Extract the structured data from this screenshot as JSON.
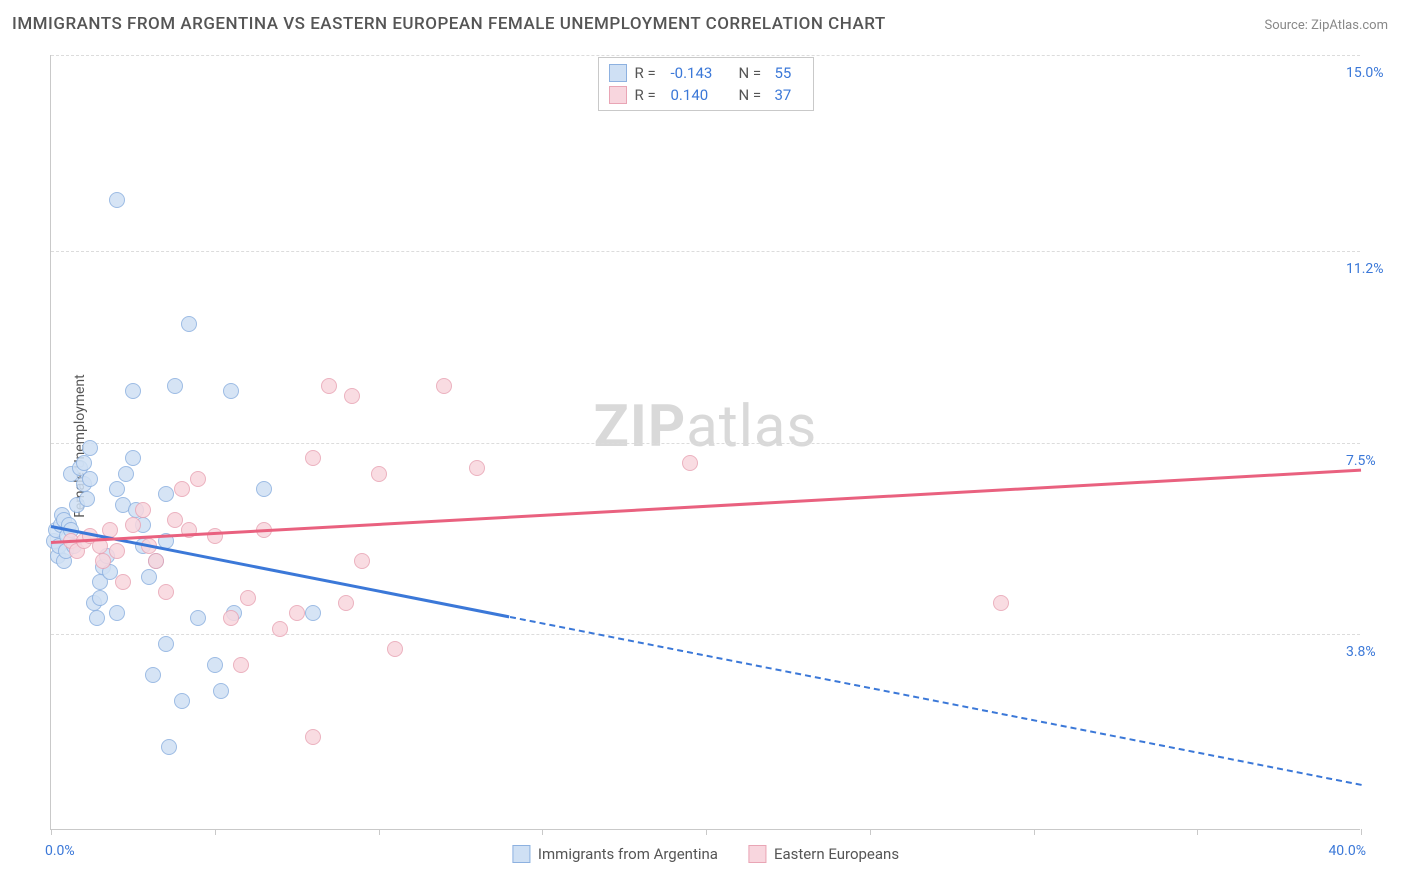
{
  "title": "IMMIGRANTS FROM ARGENTINA VS EASTERN EUROPEAN FEMALE UNEMPLOYMENT CORRELATION CHART",
  "source": "Source: ZipAtlas.com",
  "ylabel": "Female Unemployment",
  "watermark_prefix": "ZIP",
  "watermark_suffix": "atlas",
  "chart": {
    "type": "scatter",
    "xlim": [
      0,
      40
    ],
    "ylim": [
      0,
      15
    ],
    "x_min_label": "0.0%",
    "x_max_label": "40.0%",
    "y_ticks": [
      {
        "v": 3.8,
        "label": "3.8%"
      },
      {
        "v": 7.5,
        "label": "7.5%"
      },
      {
        "v": 11.2,
        "label": "11.2%"
      },
      {
        "v": 15.0,
        "label": "15.0%"
      }
    ],
    "x_tick_step": 5,
    "background_color": "#ffffff",
    "grid_color": "#dcdcdc",
    "point_radius": 8,
    "series": [
      {
        "key": "argentina",
        "label": "Immigrants from Argentina",
        "fill": "#cfe0f4",
        "stroke": "#8db1e0",
        "line_color": "#3b78d8",
        "r": "-0.143",
        "n": "55",
        "regression": {
          "x1": 0,
          "y1": 5.9,
          "x2": 40,
          "y2": 0.9,
          "solid_until_x": 14
        },
        "points": [
          [
            0.1,
            5.6
          ],
          [
            0.15,
            5.8
          ],
          [
            0.2,
            5.3
          ],
          [
            0.25,
            5.5
          ],
          [
            0.3,
            5.9
          ],
          [
            0.35,
            6.1
          ],
          [
            0.4,
            5.2
          ],
          [
            0.4,
            6.0
          ],
          [
            0.45,
            5.4
          ],
          [
            0.5,
            5.7
          ],
          [
            0.55,
            5.9
          ],
          [
            0.6,
            5.8
          ],
          [
            0.6,
            6.9
          ],
          [
            0.7,
            5.5
          ],
          [
            0.8,
            6.3
          ],
          [
            0.9,
            7.0
          ],
          [
            1.0,
            6.7
          ],
          [
            1.0,
            7.1
          ],
          [
            1.1,
            6.4
          ],
          [
            1.2,
            6.8
          ],
          [
            1.2,
            7.4
          ],
          [
            1.3,
            4.4
          ],
          [
            1.4,
            4.1
          ],
          [
            1.5,
            4.8
          ],
          [
            1.5,
            4.5
          ],
          [
            1.6,
            5.1
          ],
          [
            1.7,
            5.3
          ],
          [
            1.8,
            5.0
          ],
          [
            2.0,
            4.2
          ],
          [
            2.0,
            6.6
          ],
          [
            2.2,
            6.3
          ],
          [
            2.3,
            6.9
          ],
          [
            2.5,
            7.2
          ],
          [
            2.5,
            8.5
          ],
          [
            2.6,
            6.2
          ],
          [
            2.8,
            5.5
          ],
          [
            2.8,
            5.9
          ],
          [
            3.0,
            4.9
          ],
          [
            3.1,
            3.0
          ],
          [
            3.2,
            5.2
          ],
          [
            3.5,
            6.5
          ],
          [
            3.5,
            3.6
          ],
          [
            3.6,
            1.6
          ],
          [
            3.8,
            8.6
          ],
          [
            4.0,
            2.5
          ],
          [
            4.5,
            4.1
          ],
          [
            5.0,
            3.2
          ],
          [
            5.2,
            2.7
          ],
          [
            5.5,
            8.5
          ],
          [
            5.6,
            4.2
          ],
          [
            6.5,
            6.6
          ],
          [
            8.0,
            4.2
          ],
          [
            2.0,
            12.2
          ],
          [
            4.2,
            9.8
          ],
          [
            3.5,
            5.6
          ]
        ]
      },
      {
        "key": "eastern",
        "label": "Eastern Europeans",
        "fill": "#f8d6de",
        "stroke": "#e9a5b5",
        "line_color": "#e9617f",
        "r": "0.140",
        "n": "37",
        "regression": {
          "x1": 0,
          "y1": 5.6,
          "x2": 40,
          "y2": 7.0,
          "solid_until_x": 40
        },
        "points": [
          [
            0.6,
            5.6
          ],
          [
            0.8,
            5.4
          ],
          [
            1.0,
            5.6
          ],
          [
            1.2,
            5.7
          ],
          [
            1.5,
            5.5
          ],
          [
            1.6,
            5.2
          ],
          [
            1.8,
            5.8
          ],
          [
            2.0,
            5.4
          ],
          [
            2.2,
            4.8
          ],
          [
            2.5,
            5.9
          ],
          [
            2.8,
            6.2
          ],
          [
            3.0,
            5.5
          ],
          [
            3.2,
            5.2
          ],
          [
            3.5,
            4.6
          ],
          [
            3.8,
            6.0
          ],
          [
            4.0,
            6.6
          ],
          [
            4.2,
            5.8
          ],
          [
            4.5,
            6.8
          ],
          [
            5.0,
            5.7
          ],
          [
            5.5,
            4.1
          ],
          [
            5.8,
            3.2
          ],
          [
            6.0,
            4.5
          ],
          [
            6.5,
            5.8
          ],
          [
            7.0,
            3.9
          ],
          [
            7.5,
            4.2
          ],
          [
            8.0,
            7.2
          ],
          [
            8.0,
            1.8
          ],
          [
            8.5,
            8.6
          ],
          [
            9.0,
            4.4
          ],
          [
            9.5,
            5.2
          ],
          [
            10.0,
            6.9
          ],
          [
            10.5,
            3.5
          ],
          [
            12.0,
            8.6
          ],
          [
            13.0,
            7.0
          ],
          [
            19.5,
            7.1
          ],
          [
            29.0,
            4.4
          ],
          [
            9.2,
            8.4
          ]
        ]
      }
    ]
  }
}
